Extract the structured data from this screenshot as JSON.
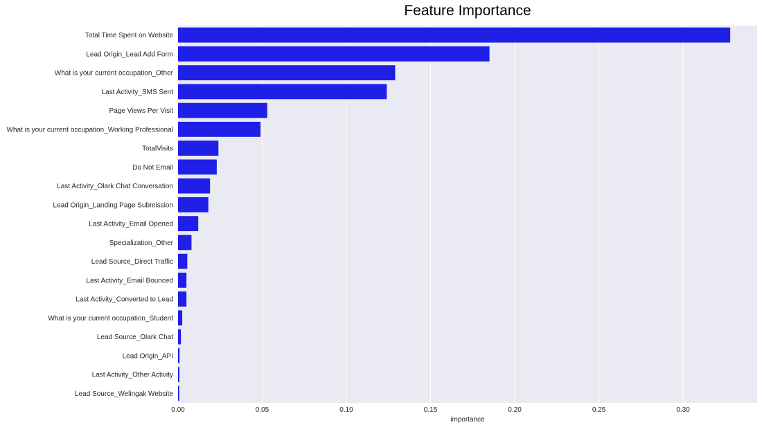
{
  "chart_data": {
    "type": "bar",
    "orientation": "horizontal",
    "title": "Feature Importance",
    "xlabel": "importance",
    "ylabel": "",
    "xlim": [
      0,
      0.344
    ],
    "x_ticks": [
      "0.00",
      "0.05",
      "0.10",
      "0.15",
      "0.20",
      "0.25",
      "0.30"
    ],
    "x_tick_values": [
      0,
      0.05,
      0.1,
      0.15,
      0.2,
      0.25,
      0.3
    ],
    "grid": "vertical",
    "categories": [
      "Total Time Spent on Website",
      "Lead Origin_Lead Add Form",
      "What is your current occupation_Other",
      "Last Activity_SMS Sent",
      "Page Views Per Visit",
      "What is your current occupation_Working Professional",
      "TotalVisits",
      "Do Not Email",
      "Last Activity_Olark Chat Conversation",
      "Lead Origin_Landing Page Submission",
      "Last Activity_Email Opened",
      "Specialization_Other",
      "Lead Source_Direct Traffic",
      "Last Activity_Email Bounced",
      "Last Activity_Converted to Lead",
      "What is your current occupation_Student",
      "Lead Source_Olark Chat",
      "Lead Origin_API",
      "Last Activity_Other Activity",
      "Lead Source_Welingak Website"
    ],
    "values": [
      0.328,
      0.185,
      0.129,
      0.124,
      0.053,
      0.049,
      0.024,
      0.023,
      0.019,
      0.018,
      0.012,
      0.008,
      0.0055,
      0.005,
      0.005,
      0.0025,
      0.0017,
      0.0009,
      0.0008,
      0.0007
    ],
    "colors": {
      "bar": "#1f1fe8",
      "plot_background": "#eaeaf2",
      "grid": "#ffffff",
      "text": "#262626"
    }
  }
}
